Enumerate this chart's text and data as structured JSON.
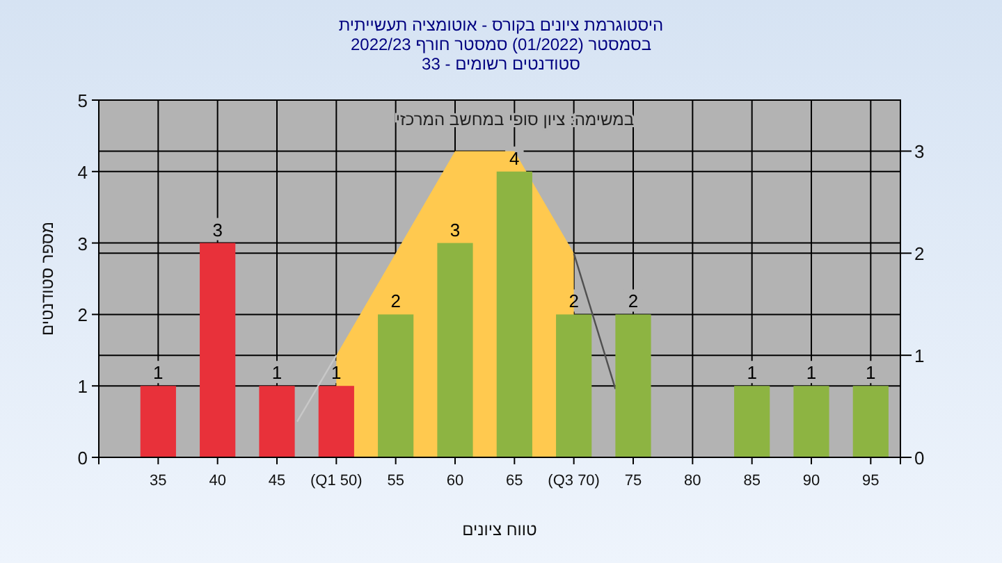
{
  "chart_data": {
    "type": "bar",
    "title": "היסטוגרמת ציונים בקורס - אוטומציה תעשייתית",
    "subtitle": "בסמסטר  (01/2022)  סמסטר חורף 2022/23\nסטודנטים רשומים - 33",
    "xlabel": "טווח ציונים",
    "ylabel": "מספר סטודנטים",
    "annotations": [
      "במשימה: ציון סופי במחשב המרכזי"
    ],
    "x": [
      35,
      40,
      45,
      50,
      55,
      60,
      65,
      70,
      75,
      80,
      85,
      90,
      95
    ],
    "xlim": [
      30,
      97.5
    ],
    "xticks": [
      {
        "value": 30,
        "label": null
      },
      35,
      40,
      45,
      {
        "value": 50,
        "label": "(Q1 50)"
      },
      55,
      60,
      65,
      {
        "value": 70,
        "label": "(Q3 70)"
      },
      75,
      80,
      85,
      90,
      95,
      {
        "value": 97.5,
        "label": null
      }
    ],
    "ylim": [
      0,
      5
    ],
    "yticks": [
      0,
      1,
      2,
      3,
      4,
      5
    ],
    "y2lim": [
      0,
      3.5
    ],
    "y2ticks": [
      0,
      1,
      2,
      3
    ],
    "grid": true,
    "series": [
      {
        "type": "area",
        "axis": "y2",
        "color": "#ffc94f",
        "x": [
          50,
          60,
          65,
          70
        ],
        "values": [
          1,
          3,
          3,
          2
        ]
      },
      {
        "type": "line",
        "axis": "y2",
        "color": "#505050",
        "x": [
          70,
          73.5
        ],
        "values": [
          2,
          0.67
        ]
      },
      {
        "type": "line",
        "axis": "y2",
        "color": "#c8c8c8",
        "x": [
          46.7,
          50
        ],
        "values": [
          0.35,
          1
        ]
      },
      {
        "colors": [
          "#e8313a",
          "#e8313a",
          "#e8313a",
          "#e8313a",
          "#8db442",
          "#8db442",
          "#8db442",
          "#8db442",
          "#8db442",
          "#8db442",
          "#8db442",
          "#8db442",
          "#8db442"
        ],
        "values": [
          1,
          3,
          1,
          1,
          2,
          3,
          4,
          2,
          2,
          0,
          1,
          1,
          1
        ],
        "value_labels": [
          "1",
          "3",
          "1",
          "1",
          "2",
          "3",
          "4",
          "2",
          "2",
          null,
          "1",
          "1",
          "1"
        ]
      }
    ]
  }
}
